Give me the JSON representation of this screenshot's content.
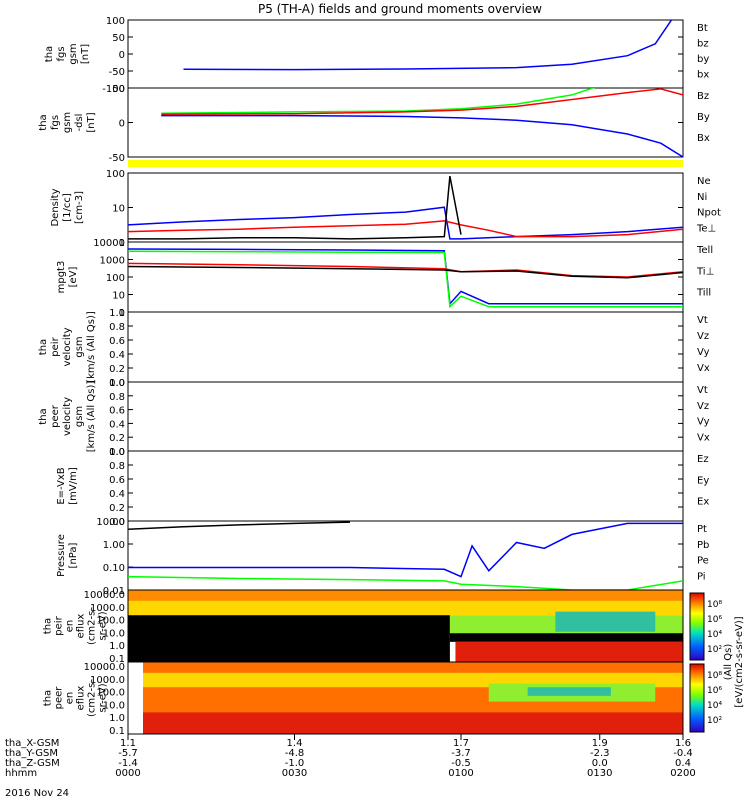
{
  "chart_data": {
    "type": "line",
    "title": "P5 (TH-A) fields and ground moments overview",
    "footer_date": "2016 Nov 24",
    "colors": {
      "black": "#000000",
      "red": "#ff0000",
      "green": "#00ff00",
      "blue": "#0000ff",
      "yellow": "#ffff00"
    },
    "panels": [
      {
        "id": "fgs",
        "ylabel": [
          "tha",
          "fgs",
          "gsm",
          "[nT]"
        ],
        "ticks": [
          "100",
          "50",
          "0",
          "-50",
          "-100"
        ],
        "ylim": [
          -100,
          100
        ],
        "legend": [
          {
            "t": "Bt",
            "c": "black"
          },
          {
            "t": "bz",
            "c": "red"
          },
          {
            "t": "by",
            "c": "green"
          },
          {
            "t": "bx",
            "c": "blue"
          }
        ],
        "series": [
          {
            "name": "bx",
            "color": "blue",
            "x": [
              0.1,
              0.3,
              0.5,
              0.7,
              0.8,
              0.9,
              0.95,
              1.0
            ],
            "y": [
              -45,
              -46,
              -44,
              -40,
              -30,
              -5,
              30,
              150
            ]
          }
        ]
      },
      {
        "id": "fgs_dsl",
        "ylabel": [
          "tha",
          "fgs",
          "gsm",
          "-dsl",
          "[nT]"
        ],
        "ticks": [
          "50",
          "0",
          "-50"
        ],
        "ylim": [
          -90,
          60
        ],
        "legend": [
          {
            "t": "Bz",
            "c": "red"
          },
          {
            "t": "By",
            "c": "green"
          },
          {
            "t": "Bx",
            "c": "blue"
          }
        ],
        "series": [
          {
            "name": "By",
            "color": "green",
            "x": [
              0.06,
              0.3,
              0.5,
              0.6,
              0.7,
              0.8,
              0.9
            ],
            "y": [
              5,
              8,
              10,
              15,
              25,
              45,
              85
            ]
          },
          {
            "name": "Bz",
            "color": "red",
            "x": [
              0.06,
              0.3,
              0.5,
              0.6,
              0.7,
              0.8,
              0.9,
              0.96,
              1.0
            ],
            "y": [
              3,
              4,
              8,
              12,
              20,
              35,
              50,
              58,
              45
            ]
          },
          {
            "name": "Bx",
            "color": "blue",
            "x": [
              0.06,
              0.3,
              0.5,
              0.6,
              0.7,
              0.8,
              0.9,
              0.96,
              1.0
            ],
            "y": [
              0,
              0,
              -2,
              -5,
              -10,
              -20,
              -40,
              -60,
              -90
            ]
          }
        ]
      },
      {
        "id": "dens",
        "ylabel": [
          "Density",
          "[1/cc]",
          "[cm-3]"
        ],
        "ticks": [
          "100",
          "10",
          "1"
        ],
        "ylim": [
          0.3,
          200
        ],
        "log": true,
        "legend": [
          {
            "t": "Ne",
            "c": "red"
          },
          {
            "t": "Ni",
            "c": "black"
          },
          {
            "t": "Npot",
            "c": "blue"
          },
          {
            "t": "Te⊥",
            "c": "red"
          }
        ],
        "series": [
          {
            "name": "Npot",
            "color": "blue",
            "x": [
              0,
              0.1,
              0.2,
              0.3,
              0.4,
              0.5,
              0.57,
              0.58,
              0.6,
              0.7,
              0.8,
              0.9,
              1.0
            ],
            "y": [
              1.5,
              2,
              2.5,
              3,
              4,
              5,
              8,
              0.4,
              0.4,
              0.5,
              0.6,
              0.8,
              1.2
            ]
          },
          {
            "name": "Ne",
            "color": "red",
            "x": [
              0,
              0.1,
              0.2,
              0.3,
              0.4,
              0.5,
              0.57,
              0.6,
              0.65,
              0.7,
              0.8,
              0.9,
              1.0
            ],
            "y": [
              0.8,
              0.9,
              1.0,
              1.2,
              1.4,
              1.6,
              2.2,
              1.5,
              0.9,
              0.5,
              0.5,
              0.6,
              1.0
            ]
          },
          {
            "name": "Ni",
            "color": "black",
            "x": [
              0,
              0.1,
              0.2,
              0.3,
              0.4,
              0.5,
              0.57,
              0.58,
              0.6
            ],
            "y": [
              0.4,
              0.4,
              0.45,
              0.45,
              0.4,
              0.45,
              0.5,
              150,
              0.6
            ]
          }
        ]
      },
      {
        "id": "temp",
        "ylabel": [
          "mpgt3",
          "[eV]"
        ],
        "ticks": [
          "10000",
          "1000",
          "100",
          "10",
          "1"
        ],
        "ylim": [
          1,
          10000
        ],
        "log": true,
        "legend": [
          {
            "t": "Tell",
            "c": "black"
          },
          {
            "t": "Ti⊥",
            "c": "blue"
          },
          {
            "t": "Till",
            "c": "green"
          }
        ],
        "series": [
          {
            "name": "Ti⊥",
            "color": "blue",
            "x": [
              0,
              0.2,
              0.4,
              0.57,
              0.58,
              0.6,
              0.65,
              0.8,
              1.0
            ],
            "y": [
              4000,
              3800,
              3500,
              3200,
              3,
              15,
              3,
              3,
              3
            ]
          },
          {
            "name": "Till",
            "color": "green",
            "x": [
              0,
              0.2,
              0.4,
              0.57,
              0.58,
              0.6,
              0.65,
              0.8,
              1.0
            ],
            "y": [
              3000,
              2800,
              2600,
              2500,
              2,
              8,
              2,
              2,
              2
            ]
          },
          {
            "name": "Te⊥",
            "color": "red",
            "x": [
              0,
              0.2,
              0.4,
              0.57,
              0.6,
              0.7,
              0.8,
              0.9,
              1.0
            ],
            "y": [
              600,
              500,
              400,
              300,
              200,
              250,
              120,
              100,
              200
            ]
          },
          {
            "name": "Tell",
            "color": "black",
            "x": [
              0,
              0.2,
              0.4,
              0.57,
              0.6,
              0.7,
              0.8,
              0.9,
              1.0
            ],
            "y": [
              400,
              350,
              300,
              250,
              200,
              220,
              110,
              90,
              180
            ]
          }
        ]
      },
      {
        "id": "peir",
        "ylabel": [
          "tha",
          "peir",
          "velocity",
          "gsm",
          "[km/s (All Qs)]"
        ],
        "ticks": [
          "1.0",
          "0.8",
          "0.6",
          "0.4",
          "0.2",
          "0.0"
        ],
        "ylim": [
          0,
          1
        ],
        "legend": [
          {
            "t": "Vt",
            "c": "black"
          },
          {
            "t": "Vz",
            "c": "red"
          },
          {
            "t": "Vy",
            "c": "green"
          },
          {
            "t": "Vx",
            "c": "blue"
          }
        ],
        "series": []
      },
      {
        "id": "peer",
        "ylabel": [
          "tha",
          "peer",
          "velocity",
          "gsm",
          "[km/s (All Qs)]"
        ],
        "ticks": [
          "1.0",
          "0.8",
          "0.6",
          "0.4",
          "0.2",
          "0.0"
        ],
        "ylim": [
          0,
          1
        ],
        "legend": [
          {
            "t": "Vt",
            "c": "black"
          },
          {
            "t": "Vz",
            "c": "red"
          },
          {
            "t": "Vy",
            "c": "green"
          },
          {
            "t": "Vx",
            "c": "blue"
          }
        ],
        "series": []
      },
      {
        "id": "vxb",
        "ylabel": [
          "E=-VxB",
          "[mV/m]"
        ],
        "ticks": [
          "1.0",
          "0.8",
          "0.6",
          "0.4",
          "0.2",
          "0.0"
        ],
        "ylim": [
          0,
          1
        ],
        "legend": [
          {
            "t": "Ez",
            "c": "red"
          },
          {
            "t": "Ey",
            "c": "green"
          },
          {
            "t": "Ex",
            "c": "blue"
          }
        ],
        "series": []
      },
      {
        "id": "press",
        "ylabel": [
          "Pressure",
          "[nPa]"
        ],
        "ticks": [
          "10.00",
          "1.00",
          "0.10",
          "0.01"
        ],
        "ylim": [
          0.01,
          40
        ],
        "log": true,
        "legend": [
          {
            "t": "Pt",
            "c": "black"
          },
          {
            "t": "Pb",
            "c": "red"
          },
          {
            "t": "Pe",
            "c": "green"
          },
          {
            "t": "Pi",
            "c": "blue"
          }
        ],
        "series": [
          {
            "name": "Pt",
            "color": "black",
            "x": [
              0,
              0.1,
              0.2,
              0.3,
              0.4
            ],
            "y": [
              15,
              20,
              25,
              30,
              35
            ]
          },
          {
            "name": "Pi",
            "color": "blue",
            "x": [
              0,
              0.2,
              0.4,
              0.57,
              0.6,
              0.62,
              0.65,
              0.7,
              0.75,
              0.8,
              0.9,
              1.0
            ],
            "y": [
              0.15,
              0.15,
              0.15,
              0.12,
              0.05,
              2,
              0.1,
              3,
              1.5,
              8,
              30,
              30
            ]
          },
          {
            "name": "Pe",
            "color": "green",
            "x": [
              0,
              0.2,
              0.4,
              0.57,
              0.6,
              0.7,
              0.8,
              0.9,
              1.0
            ],
            "y": [
              0.05,
              0.04,
              0.035,
              0.03,
              0.02,
              0.015,
              0.01,
              0.01,
              0.03
            ]
          }
        ]
      }
    ],
    "spectrograms": [
      {
        "id": "peir_en",
        "ylabel": [
          "tha",
          "peir",
          "en",
          "eflux",
          "(cm2-s-",
          "sr-eV)"
        ],
        "ticks": [
          "10000.0",
          "1000.0",
          "100.0",
          "10.0",
          "1.0",
          "0.1"
        ]
      },
      {
        "id": "peer_en",
        "ylabel": [
          "tha",
          "peer",
          "en",
          "eflux",
          "(cm2-s-",
          "sr-eV)"
        ],
        "ticks": [
          "10000.0",
          "1000.0",
          "100.0",
          "10.0",
          "1.0",
          "0.1"
        ]
      }
    ],
    "colorbar": {
      "label": "[eV/(cm2-s-sr-eV)]",
      "sublabel": "(All Qs)",
      "ticks": [
        "10⁸",
        "10⁶",
        "10⁴",
        "10²"
      ]
    },
    "xaxis": {
      "rows": [
        {
          "label": "tha_X-GSM",
          "values": [
            "1.1",
            "1.4",
            "1.7",
            "1.9",
            "1.6"
          ]
        },
        {
          "label": "tha_Y-GSM",
          "values": [
            "-5.7",
            "-4.8",
            "-3.7",
            "-2.3",
            "-0.4"
          ]
        },
        {
          "label": "tha_Z-GSM",
          "values": [
            "-1.4",
            "-1.0",
            "-0.5",
            "0.0",
            "0.4"
          ]
        },
        {
          "label": "hhmm",
          "values": [
            "0000",
            "0030",
            "0100",
            "0130",
            "0200"
          ]
        }
      ]
    }
  }
}
